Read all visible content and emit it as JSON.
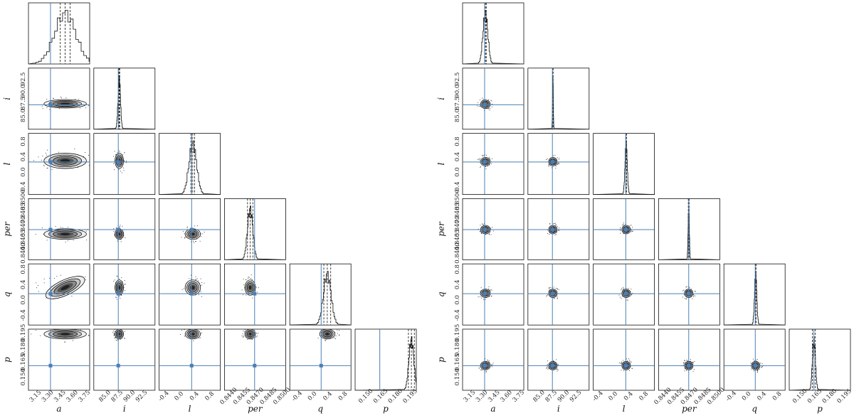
{
  "chart_data": [
    {
      "type": "corner",
      "params": [
        "a",
        "i",
        "l",
        "per",
        "q",
        "p"
      ],
      "axis_labels": [
        "a",
        "i",
        "l",
        "per",
        "q",
        "p"
      ],
      "truth_line_color": "#4a7fb5",
      "contour_color": "#111111",
      "ranges": {
        "a": [
          3.05,
          3.8
        ],
        "i": [
          82.5,
          95.0
        ],
        "l": [
          -0.55,
          1.05
        ],
        "per": [
          0.8434,
          0.8503
        ],
        "q": [
          -0.62,
          0.98
        ],
        "p": [
          0.138,
          0.2
        ]
      },
      "ticks": {
        "a": [
          "3.15",
          "3.30",
          "3.45",
          "3.60",
          "3.75"
        ],
        "i": [
          "85.0",
          "87.5",
          "90.0",
          "92.5"
        ],
        "l": [
          "-0.4",
          "0.0",
          "0.4",
          "0.8"
        ],
        "per": [
          "0.8440",
          "0.8455",
          "0.8470",
          "0.8485",
          "0.8500"
        ],
        "q": [
          "-0.4",
          "0.0",
          "0.4",
          "0.8"
        ],
        "p": [
          "0.150",
          "0.165",
          "0.180",
          "0.195"
        ]
      },
      "truths": {
        "a": 3.32,
        "i": 87.5,
        "l": 0.3,
        "per": 0.8468,
        "q": 0.2,
        "p": 0.163
      },
      "medians": {
        "a": 3.5,
        "i": 87.7,
        "l": 0.33,
        "per": 0.8463,
        "q": 0.36,
        "p": 0.195
      },
      "widths": {
        "a": 0.13,
        "i": 0.25,
        "l": 0.1,
        "per": 0.0003,
        "q": 0.1,
        "p": 0.0025
      },
      "quantile_lines": {
        "a": [
          3.44,
          3.5,
          3.56
        ],
        "i": [
          87.6,
          87.7,
          87.8
        ],
        "l": [
          0.28,
          0.33,
          0.38
        ],
        "per": [
          0.846,
          0.8463,
          0.8466
        ],
        "q": [
          0.27,
          0.36,
          0.45
        ],
        "p": [
          0.192,
          0.195,
          0.198
        ]
      }
    },
    {
      "type": "corner",
      "params": [
        "a",
        "i",
        "l",
        "per",
        "q",
        "p"
      ],
      "axis_labels": [
        "a",
        "i",
        "l",
        "per",
        "q",
        "p"
      ],
      "truth_line_color": "#4a7fb5",
      "contour_color": "#111111",
      "ranges": {
        "a": [
          3.05,
          3.8
        ],
        "i": [
          82.5,
          95.0
        ],
        "l": [
          -0.55,
          1.05
        ],
        "per": [
          0.8434,
          0.8503
        ],
        "q": [
          -0.62,
          0.98
        ],
        "p": [
          0.138,
          0.2
        ]
      },
      "ticks": {
        "a": [
          "3.15",
          "3.30",
          "3.45",
          "3.60",
          "3.75"
        ],
        "i": [
          "85.0",
          "87.5",
          "90.0",
          "92.5"
        ],
        "l": [
          "-0.4",
          "0.0",
          "0.4",
          "0.8"
        ],
        "per": [
          "0.8440",
          "0.8455",
          "0.8470",
          "0.8485",
          "0.8500"
        ],
        "q": [
          "-0.4",
          "0.0",
          "0.4",
          "0.8"
        ],
        "p": [
          "0.150",
          "0.165",
          "0.180",
          "0.195"
        ]
      },
      "truths": {
        "a": 3.32,
        "i": 87.5,
        "l": 0.3,
        "per": 0.8468,
        "q": 0.2,
        "p": 0.163
      },
      "medians": {
        "a": 3.33,
        "i": 87.6,
        "l": 0.31,
        "per": 0.8468,
        "q": 0.21,
        "p": 0.163
      },
      "widths": {
        "a": 0.03,
        "i": 0.08,
        "l": 0.03,
        "per": 7e-05,
        "q": 0.03,
        "p": 0.0015
      },
      "quantile_lines": {
        "a": [
          3.32,
          3.33,
          3.34
        ],
        "i": [
          87.55,
          87.6,
          87.65
        ],
        "l": [
          0.3,
          0.31,
          0.32
        ],
        "per": [
          0.84675,
          0.8468,
          0.84685
        ],
        "q": [
          0.2,
          0.21,
          0.22
        ],
        "p": [
          0.1615,
          0.163,
          0.1645
        ]
      }
    }
  ]
}
